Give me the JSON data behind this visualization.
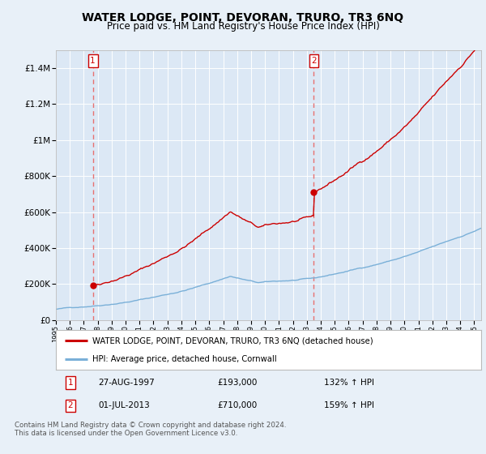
{
  "title": "WATER LODGE, POINT, DEVORAN, TRURO, TR3 6NQ",
  "subtitle": "Price paid vs. HM Land Registry's House Price Index (HPI)",
  "title_fontsize": 10,
  "subtitle_fontsize": 8.5,
  "bg_color": "#e8f0f8",
  "plot_bg_color": "#dce8f5",
  "grid_color": "#ffffff",
  "hpi_color": "#7ab0d8",
  "price_color": "#cc0000",
  "sale1_date": 1997.65,
  "sale1_price": 193000,
  "sale2_date": 2013.5,
  "sale2_price": 710000,
  "legend_line1": "WATER LODGE, POINT, DEVORAN, TRURO, TR3 6NQ (detached house)",
  "legend_line2": "HPI: Average price, detached house, Cornwall",
  "table_row1": [
    "1",
    "27-AUG-1997",
    "£193,000",
    "132% ↑ HPI"
  ],
  "table_row2": [
    "2",
    "01-JUL-2013",
    "£710,000",
    "159% ↑ HPI"
  ],
  "footer": "Contains HM Land Registry data © Crown copyright and database right 2024.\nThis data is licensed under the Open Government Licence v3.0.",
  "ylim": [
    0,
    1500000
  ],
  "xlim_start": 1995,
  "xlim_end": 2025.5,
  "yticks": [
    0,
    200000,
    400000,
    600000,
    800000,
    1000000,
    1200000,
    1400000
  ],
  "ytick_labels": [
    "£0",
    "£200K",
    "£400K",
    "£600K",
    "£800K",
    "£1M",
    "£1.2M",
    "£1.4M"
  ]
}
